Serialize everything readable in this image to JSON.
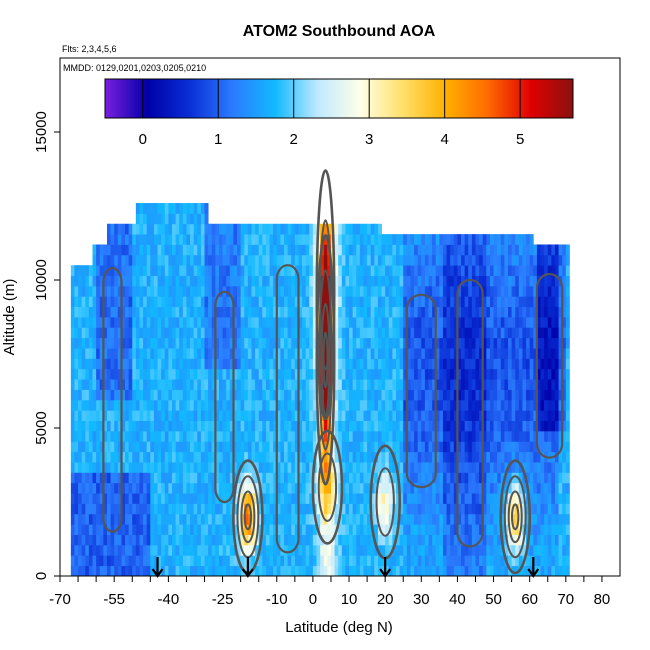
{
  "title": "ATOM2 Southbound AOA",
  "flights_note": "Flts: 2,3,4,5,6",
  "dates_note": "MMDD: 0129,0201,0203,0205,0210",
  "chart_data": {
    "type": "heatmap",
    "title": "ATOM2 Southbound AOA",
    "xlabel": "Latitude (deg N)",
    "ylabel": "Altitude (m)",
    "xlim": [
      -70,
      85
    ],
    "ylim": [
      0,
      17500
    ],
    "x_tick_labels": [
      "-70",
      "-55",
      "-40",
      "-25",
      "-10",
      "0",
      "10",
      "20",
      "30",
      "40",
      "50",
      "60",
      "70",
      "80"
    ],
    "y_tick_labels": [
      "0",
      "5000",
      "10000",
      "15000"
    ],
    "colorbar": {
      "range": [
        -0.5,
        5.7
      ],
      "ticks": [
        "0",
        "1",
        "2",
        "3",
        "4",
        "5"
      ],
      "colors": [
        "#7a1fe0",
        "#0000a8",
        "#0a2fd6",
        "#2b7bff",
        "#12b9ff",
        "#bfe9ff",
        "#ffffe8",
        "#ffe06a",
        "#ffb000",
        "#ff6a00",
        "#e00000",
        "#8b1010"
      ]
    },
    "profiles": [
      {
        "lat": -67,
        "top": 10500
      },
      {
        "lat": -62,
        "top": 11000
      },
      {
        "lat": -58,
        "top": 11600
      },
      {
        "lat": -50,
        "top": 12400
      },
      {
        "lat": -40,
        "top": 12400
      },
      {
        "lat": -30,
        "top": 12400
      },
      {
        "lat": -20,
        "top": 11900
      },
      {
        "lat": -10,
        "top": 11600
      },
      {
        "lat": 0,
        "top": 11600
      },
      {
        "lat": 10,
        "top": 11600
      },
      {
        "lat": 18,
        "top": 11600
      },
      {
        "lat": 28,
        "top": 11400
      },
      {
        "lat": 40,
        "top": 11400
      },
      {
        "lat": 50,
        "top": 11400
      },
      {
        "lat": 60,
        "top": 11400
      },
      {
        "lat": 68,
        "top": 11000
      }
    ],
    "features": [
      {
        "lat": -18.0,
        "alt": 2000,
        "value": 4.6
      },
      {
        "lat": 3.5,
        "alt": 7300,
        "value": 5.2
      },
      {
        "lat": 3.5,
        "alt": 9500,
        "value": 4.0
      },
      {
        "lat": 56.0,
        "alt": 2000,
        "value": 4.1
      },
      {
        "lat": 20.0,
        "alt": 2500,
        "value": 3.0
      },
      {
        "lat": 4.0,
        "alt": 3000,
        "value": 2.8
      }
    ],
    "arrow_latitudes": [
      -43,
      -18,
      20,
      61
    ],
    "grid": false,
    "colorbar_position": "top"
  }
}
